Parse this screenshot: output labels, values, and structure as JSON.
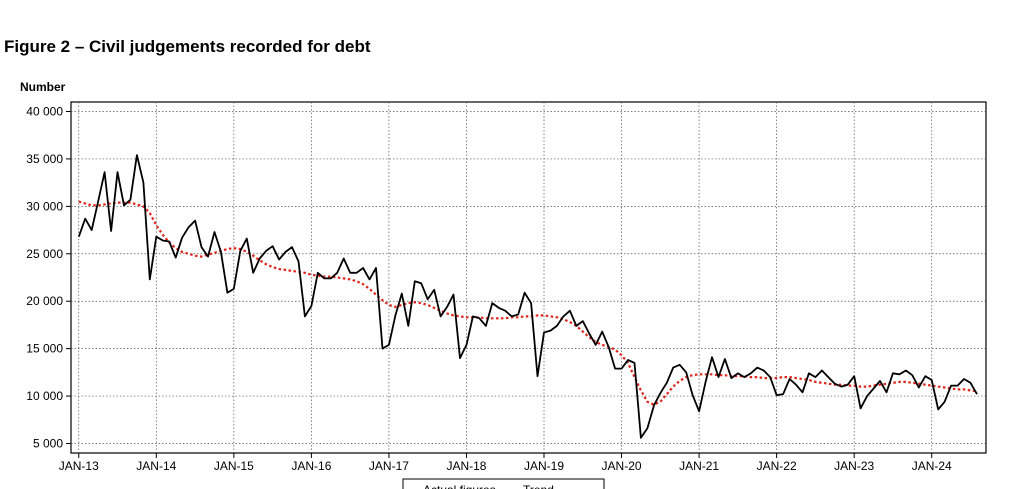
{
  "figure_title": "Figure 2 – Civil judgements recorded for debt",
  "chart_data": {
    "type": "line",
    "ylabel": "Number",
    "ylim": [
      4000,
      41000
    ],
    "y_ticks": [
      {
        "value": 5000,
        "label": "5 000"
      },
      {
        "value": 10000,
        "label": "10 000"
      },
      {
        "value": 15000,
        "label": "15 000"
      },
      {
        "value": 20000,
        "label": "20 000"
      },
      {
        "value": 25000,
        "label": "25 000"
      },
      {
        "value": 30000,
        "label": "30 000"
      },
      {
        "value": 35000,
        "label": "35 000"
      },
      {
        "value": 40000,
        "label": "40 000"
      }
    ],
    "x_ticks": [
      {
        "value": 0,
        "label": "JAN-13"
      },
      {
        "value": 12,
        "label": "JAN-14"
      },
      {
        "value": 24,
        "label": "JAN-15"
      },
      {
        "value": 36,
        "label": "JAN-16"
      },
      {
        "value": 48,
        "label": "JAN-17"
      },
      {
        "value": 60,
        "label": "JAN-18"
      },
      {
        "value": 72,
        "label": "JAN-19"
      },
      {
        "value": 84,
        "label": "JAN-20"
      },
      {
        "value": 96,
        "label": "JAN-21"
      },
      {
        "value": 108,
        "label": "JAN-22"
      },
      {
        "value": 120,
        "label": "JAN-23"
      },
      {
        "value": 132,
        "label": "JAN-24"
      }
    ],
    "xlim": [
      -1.2,
      140.4
    ],
    "grid": true,
    "legend_position": "bottom",
    "series": [
      {
        "name": "Actual figures",
        "color": "#000000",
        "style": "solid",
        "values": [
          26800,
          28700,
          27500,
          30500,
          33600,
          27400,
          33600,
          30100,
          30700,
          35400,
          32500,
          22300,
          26800,
          26400,
          26300,
          24600,
          26700,
          27800,
          28500,
          25700,
          24700,
          27300,
          25200,
          20900,
          21300,
          25300,
          26600,
          23000,
          24500,
          25300,
          25800,
          24400,
          25200,
          25700,
          24200,
          18400,
          19500,
          23000,
          22400,
          22400,
          23000,
          24500,
          23000,
          23000,
          23500,
          22300,
          23500,
          15000,
          15400,
          18500,
          20800,
          17400,
          22100,
          21900,
          20200,
          21200,
          18400,
          19400,
          20700,
          14000,
          15400,
          18400,
          18200,
          17400,
          19800,
          19300,
          19000,
          18400,
          18600,
          20900,
          19800,
          12100,
          16700,
          16900,
          17400,
          18400,
          19000,
          17400,
          17900,
          16600,
          15400,
          16800,
          15200,
          12900,
          12900,
          13800,
          13500,
          5600,
          6600,
          9000,
          10300,
          11400,
          13000,
          13300,
          12500,
          10100,
          8400,
          11500,
          14100,
          12000,
          13900,
          11900,
          12400,
          12000,
          12400,
          13000,
          12700,
          12000,
          10100,
          10200,
          11800,
          11200,
          10400,
          12400,
          12000,
          12700,
          12000,
          11300,
          11000,
          11200,
          12100,
          8700,
          10000,
          10800,
          11600,
          10400,
          12400,
          12300,
          12700,
          12200,
          10900,
          12100,
          11700,
          8600,
          9400,
          11100,
          11100,
          11800,
          11400,
          10200
        ]
      },
      {
        "name": "Trend",
        "color": "#e2231a",
        "style": "dotted",
        "values": [
          30500,
          30300,
          30100,
          30100,
          30200,
          30300,
          30400,
          30400,
          30400,
          30200,
          30000,
          29300,
          28000,
          27000,
          26200,
          25600,
          25200,
          25000,
          24800,
          24700,
          24900,
          25100,
          25300,
          25500,
          25600,
          25500,
          25200,
          24800,
          24300,
          23900,
          23600,
          23400,
          23300,
          23200,
          23100,
          23000,
          22800,
          22700,
          22600,
          22600,
          22500,
          22400,
          22300,
          22100,
          21800,
          21300,
          20700,
          20100,
          19600,
          19400,
          19600,
          19800,
          19900,
          19800,
          19600,
          19300,
          19000,
          18700,
          18500,
          18400,
          18300,
          18300,
          18300,
          18200,
          18200,
          18200,
          18200,
          18300,
          18300,
          18400,
          18400,
          18500,
          18500,
          18400,
          18300,
          18100,
          17800,
          17400,
          16800,
          16200,
          15700,
          15400,
          15200,
          14900,
          14300,
          13500,
          12000,
          10600,
          9400,
          9100,
          9400,
          10200,
          11000,
          11600,
          12000,
          12200,
          12300,
          12300,
          12300,
          12200,
          12200,
          12100,
          12100,
          12100,
          12000,
          12000,
          11900,
          11900,
          11900,
          12000,
          12000,
          11900,
          11800,
          11700,
          11500,
          11400,
          11300,
          11200,
          11200,
          11100,
          11100,
          11000,
          11000,
          11100,
          11200,
          11300,
          11400,
          11500,
          11500,
          11400,
          11300,
          11200,
          11100,
          11000,
          10900,
          10800,
          10700,
          10700,
          10600,
          10500
        ]
      }
    ]
  }
}
